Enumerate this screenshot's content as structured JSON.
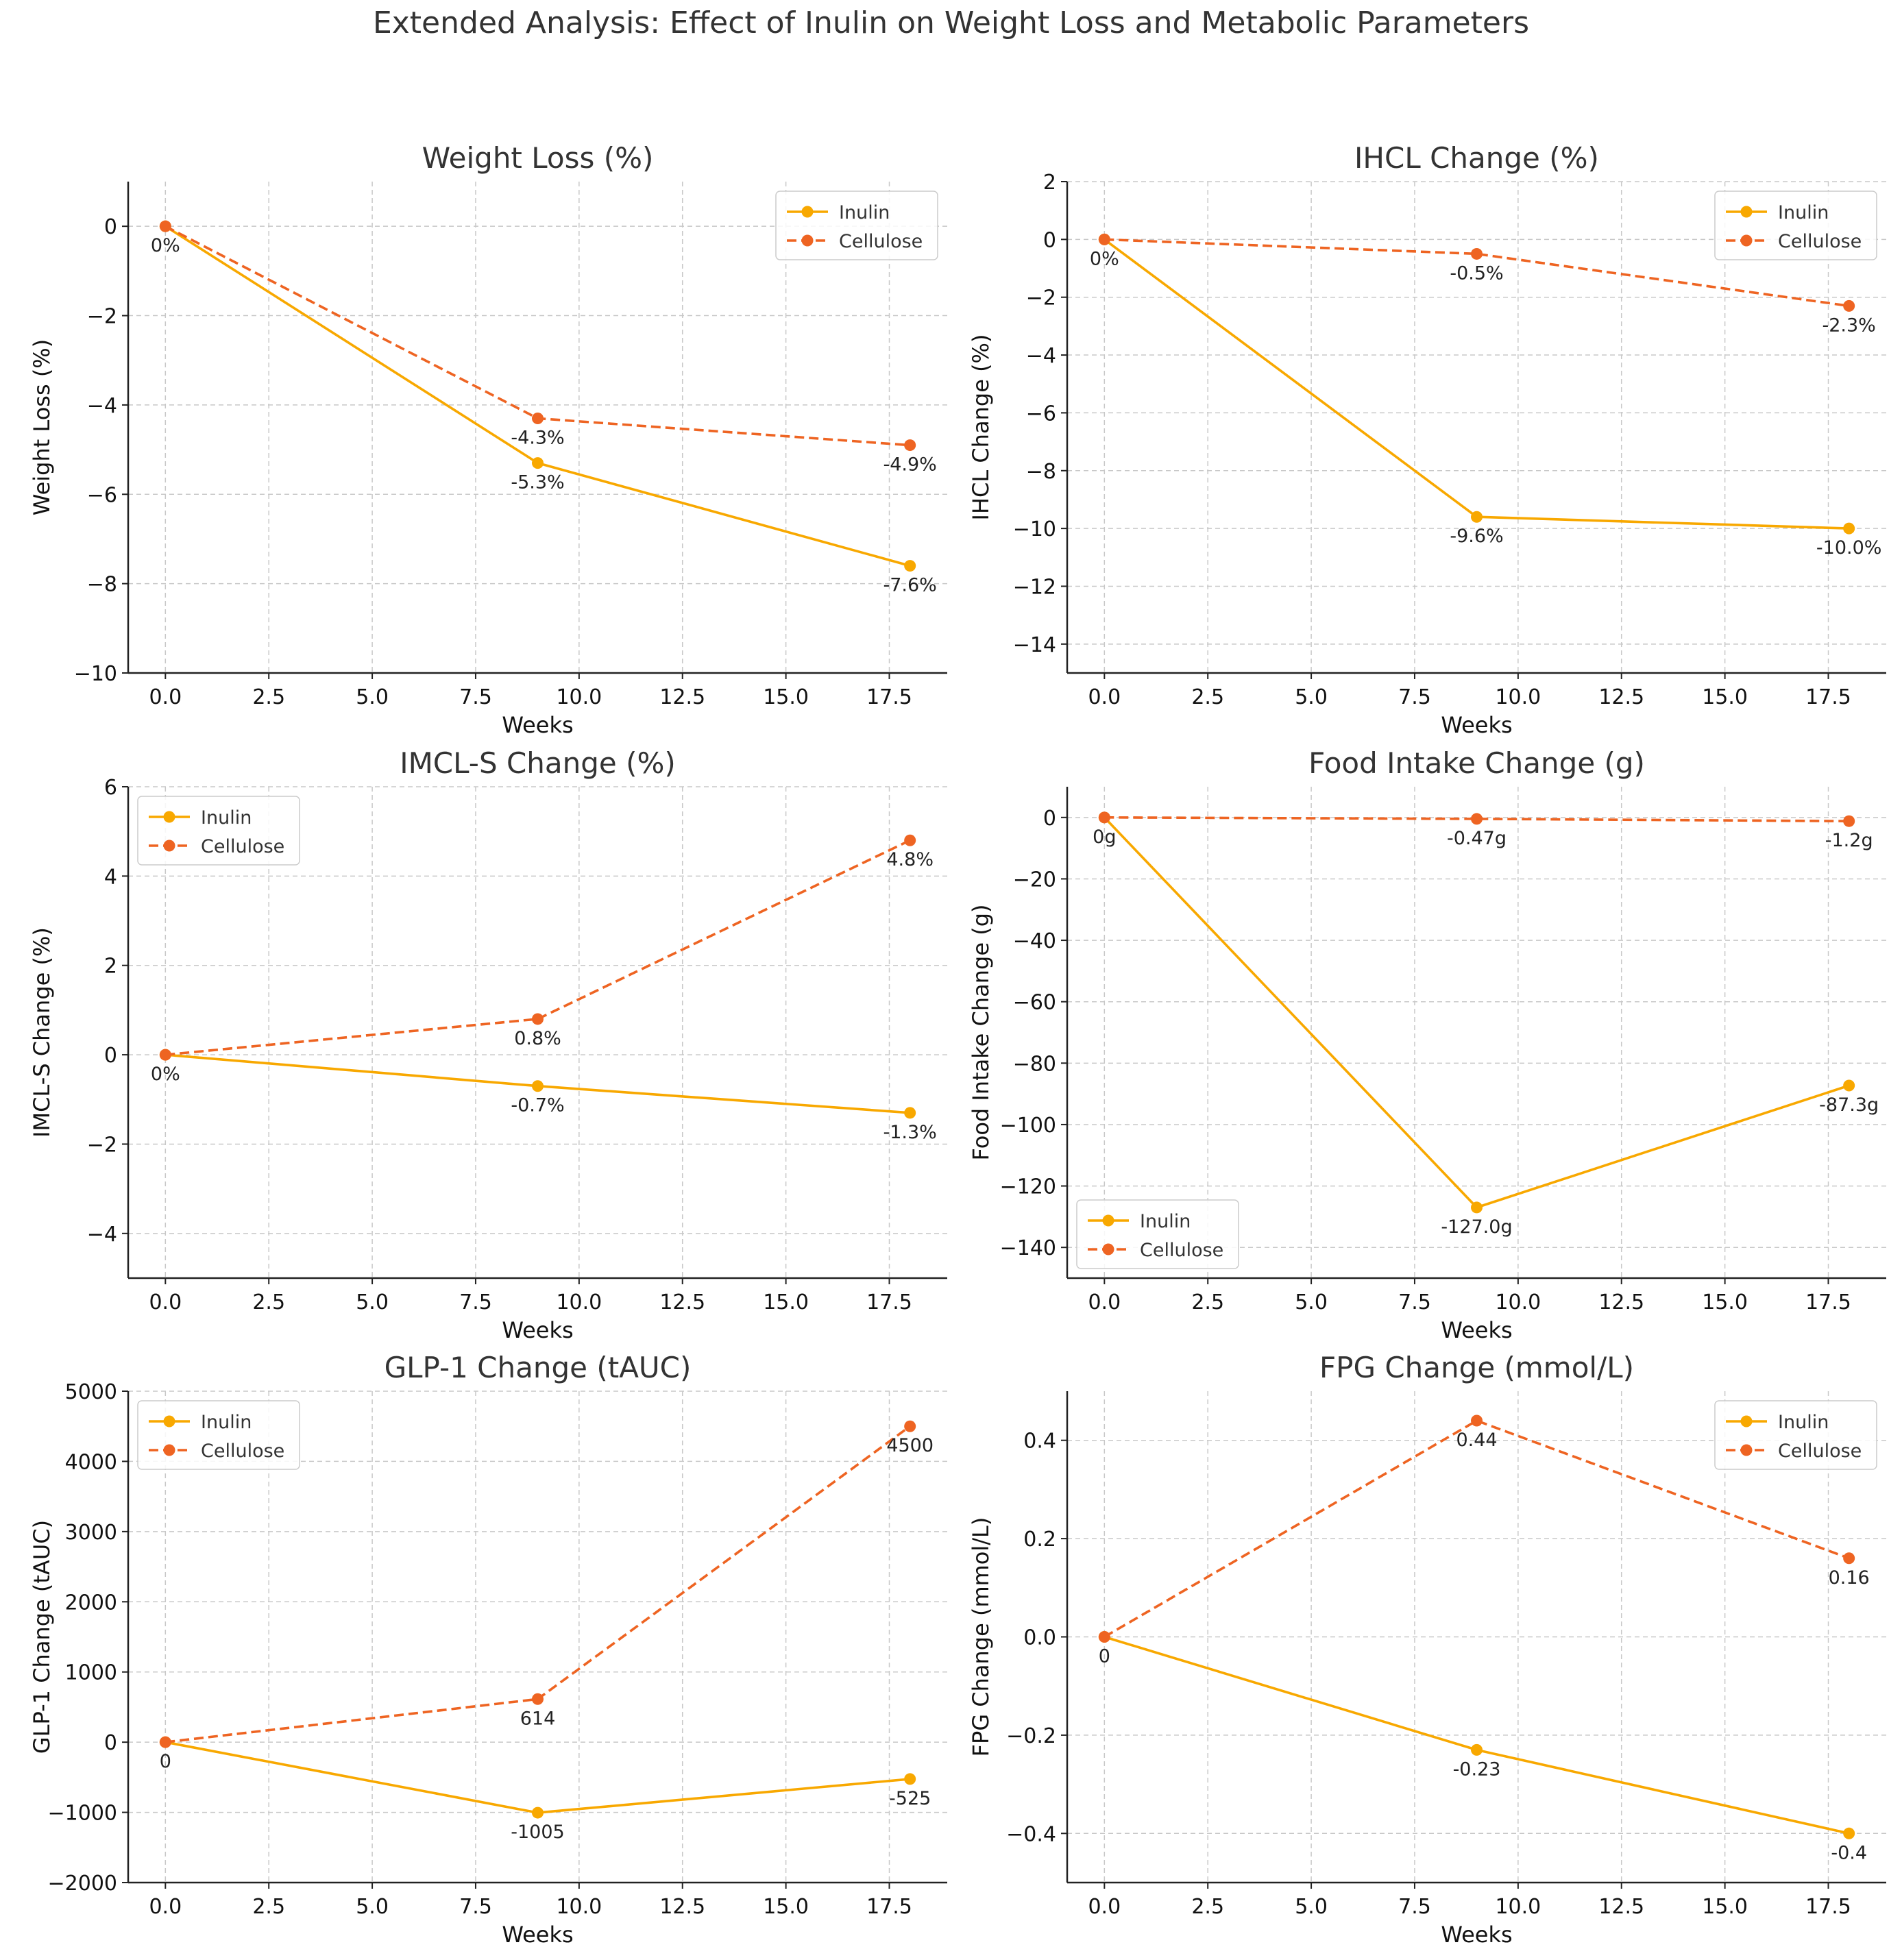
{
  "suptitle": "Extended Analysis: Effect of Inulin on Weight Loss and Metabolic Parameters",
  "colors": {
    "inulin": "#F8A800",
    "cellulose": "#EE6422",
    "grid": "#c8c8c8",
    "axis": "#222222"
  },
  "chart_data": [
    {
      "type": "line",
      "title": "Weight Loss (%)",
      "xlabel": "Weeks",
      "ylabel": "Weight Loss (%)",
      "x": [
        0,
        9,
        18
      ],
      "xlim": [
        -0.9,
        18.9
      ],
      "ylim": [
        -10,
        1
      ],
      "xticks": [
        0,
        2.5,
        5,
        7.5,
        10,
        12.5,
        15,
        17.5
      ],
      "xtick_labels": [
        "0.0",
        "2.5",
        "5.0",
        "7.5",
        "10.0",
        "12.5",
        "15.0",
        "17.5"
      ],
      "yticks": [
        0,
        -2,
        -4,
        -6,
        -8,
        -10
      ],
      "ytick_labels": [
        "0",
        "−2",
        "−4",
        "−6",
        "−8",
        "−10"
      ],
      "legend": "top-right",
      "series": [
        {
          "name": "Inulin",
          "style": "solid",
          "values": [
            0,
            -5.3,
            -7.6
          ],
          "labels": [
            "0%",
            "-5.3%",
            "-7.6%"
          ]
        },
        {
          "name": "Cellulose",
          "style": "dashed",
          "values": [
            0,
            -4.3,
            -4.9
          ],
          "labels": [
            "",
            "-4.3%",
            "-4.9%"
          ]
        }
      ]
    },
    {
      "type": "line",
      "title": "IHCL Change (%)",
      "xlabel": "Weeks",
      "ylabel": "IHCL Change (%)",
      "x": [
        0,
        9,
        18
      ],
      "xlim": [
        -0.9,
        18.9
      ],
      "ylim": [
        -15,
        2
      ],
      "xticks": [
        0,
        2.5,
        5,
        7.5,
        10,
        12.5,
        15,
        17.5
      ],
      "xtick_labels": [
        "0.0",
        "2.5",
        "5.0",
        "7.5",
        "10.0",
        "12.5",
        "15.0",
        "17.5"
      ],
      "yticks": [
        2,
        0,
        -2,
        -4,
        -6,
        -8,
        -10,
        -12,
        -14
      ],
      "ytick_labels": [
        "2",
        "0",
        "−2",
        "−4",
        "−6",
        "−8",
        "−10",
        "−12",
        "−14"
      ],
      "legend": "top-right",
      "series": [
        {
          "name": "Inulin",
          "style": "solid",
          "values": [
            0,
            -9.6,
            -10.0
          ],
          "labels": [
            "0%",
            "-9.6%",
            "-10.0%"
          ]
        },
        {
          "name": "Cellulose",
          "style": "dashed",
          "values": [
            0,
            -0.5,
            -2.3
          ],
          "labels": [
            "",
            "-0.5%",
            "-2.3%"
          ]
        }
      ]
    },
    {
      "type": "line",
      "title": "IMCL-S Change (%)",
      "xlabel": "Weeks",
      "ylabel": "IMCL-S Change (%)",
      "x": [
        0,
        9,
        18
      ],
      "xlim": [
        -0.9,
        18.9
      ],
      "ylim": [
        -5,
        6
      ],
      "xticks": [
        0,
        2.5,
        5,
        7.5,
        10,
        12.5,
        15,
        17.5
      ],
      "xtick_labels": [
        "0.0",
        "2.5",
        "5.0",
        "7.5",
        "10.0",
        "12.5",
        "15.0",
        "17.5"
      ],
      "yticks": [
        6,
        4,
        2,
        0,
        -2,
        -4
      ],
      "ytick_labels": [
        "6",
        "4",
        "2",
        "0",
        "−2",
        "−4"
      ],
      "legend": "top-left",
      "series": [
        {
          "name": "Inulin",
          "style": "solid",
          "values": [
            0,
            -0.7,
            -1.3
          ],
          "labels": [
            "0%",
            "-0.7%",
            "-1.3%"
          ]
        },
        {
          "name": "Cellulose",
          "style": "dashed",
          "values": [
            0,
            0.8,
            4.8
          ],
          "labels": [
            "",
            "0.8%",
            "4.8%"
          ]
        }
      ]
    },
    {
      "type": "line",
      "title": "Food Intake Change (g)",
      "xlabel": "Weeks",
      "ylabel": "Food Intake Change (g)",
      "x": [
        0,
        9,
        18
      ],
      "xlim": [
        -0.9,
        18.9
      ],
      "ylim": [
        -150,
        10
      ],
      "xticks": [
        0,
        2.5,
        5,
        7.5,
        10,
        12.5,
        15,
        17.5
      ],
      "xtick_labels": [
        "0.0",
        "2.5",
        "5.0",
        "7.5",
        "10.0",
        "12.5",
        "15.0",
        "17.5"
      ],
      "yticks": [
        0,
        -20,
        -40,
        -60,
        -80,
        -100,
        -120,
        -140
      ],
      "ytick_labels": [
        "0",
        "−20",
        "−40",
        "−60",
        "−80",
        "−100",
        "−120",
        "−140"
      ],
      "legend": "bottom-left",
      "series": [
        {
          "name": "Inulin",
          "style": "solid",
          "values": [
            0,
            -127.0,
            -87.3
          ],
          "labels": [
            "0g",
            "-127.0g",
            "-87.3g"
          ]
        },
        {
          "name": "Cellulose",
          "style": "dashed",
          "values": [
            0,
            -0.47,
            -1.2
          ],
          "labels": [
            "",
            "-0.47g",
            "-1.2g"
          ]
        }
      ]
    },
    {
      "type": "line",
      "title": "GLP-1 Change (tAUC)",
      "xlabel": "Weeks",
      "ylabel": "GLP-1 Change (tAUC)",
      "x": [
        0,
        9,
        18
      ],
      "xlim": [
        -0.9,
        18.9
      ],
      "ylim": [
        -2000,
        5000
      ],
      "xticks": [
        0,
        2.5,
        5,
        7.5,
        10,
        12.5,
        15,
        17.5
      ],
      "xtick_labels": [
        "0.0",
        "2.5",
        "5.0",
        "7.5",
        "10.0",
        "12.5",
        "15.0",
        "17.5"
      ],
      "yticks": [
        5000,
        4000,
        3000,
        2000,
        1000,
        0,
        -1000,
        -2000
      ],
      "ytick_labels": [
        "5000",
        "4000",
        "3000",
        "2000",
        "1000",
        "0",
        "−1000",
        "−2000"
      ],
      "legend": "top-left",
      "series": [
        {
          "name": "Inulin",
          "style": "solid",
          "values": [
            0,
            -1005,
            -525
          ],
          "labels": [
            "0",
            "-1005",
            "-525"
          ]
        },
        {
          "name": "Cellulose",
          "style": "dashed",
          "values": [
            0,
            614,
            4500
          ],
          "labels": [
            "",
            "614",
            "4500"
          ]
        }
      ]
    },
    {
      "type": "line",
      "title": "FPG Change (mmol/L)",
      "xlabel": "Weeks",
      "ylabel": "FPG Change (mmol/L)",
      "x": [
        0,
        9,
        18
      ],
      "xlim": [
        -0.9,
        18.9
      ],
      "ylim": [
        -0.5,
        0.5
      ],
      "xticks": [
        0,
        2.5,
        5,
        7.5,
        10,
        12.5,
        15,
        17.5
      ],
      "xtick_labels": [
        "0.0",
        "2.5",
        "5.0",
        "7.5",
        "10.0",
        "12.5",
        "15.0",
        "17.5"
      ],
      "yticks": [
        0.4,
        0.2,
        0,
        -0.2,
        -0.4
      ],
      "ytick_labels": [
        "0.4",
        "0.2",
        "0.0",
        "−0.2",
        "−0.4"
      ],
      "legend": "top-right",
      "series": [
        {
          "name": "Inulin",
          "style": "solid",
          "values": [
            0,
            -0.23,
            -0.4
          ],
          "labels": [
            "0",
            "-0.23",
            "-0.4"
          ]
        },
        {
          "name": "Cellulose",
          "style": "dashed",
          "values": [
            0,
            0.44,
            0.16
          ],
          "labels": [
            "",
            "0.44",
            "0.16"
          ]
        }
      ]
    }
  ]
}
